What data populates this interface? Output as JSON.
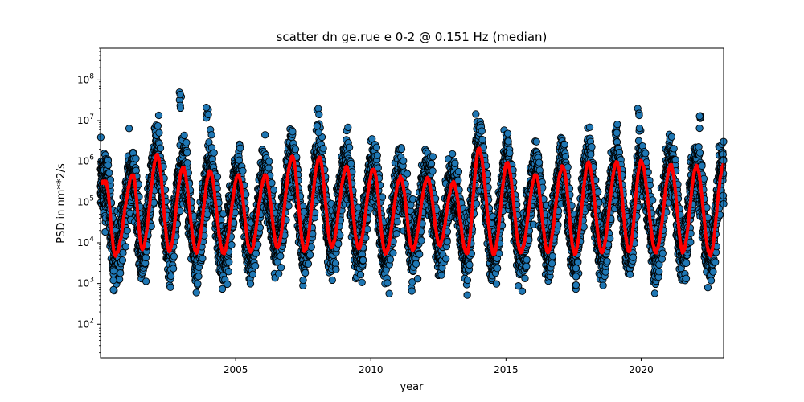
{
  "chart_data": {
    "type": "scatter",
    "title": "scatter dn ge.rue e 0-2 @ 0.151 Hz (median)",
    "xlabel": "year",
    "ylabel": "PSD in nm**2/s",
    "xlim": [
      2000.0,
      2023.05
    ],
    "ylim": [
      15,
      600000000
    ],
    "yscale": "log",
    "grid": false,
    "x_ticks": [
      2005,
      2010,
      2015,
      2020
    ],
    "x_tick_labels": [
      "2005",
      "2010",
      "2015",
      "2020"
    ],
    "y_ticks": [
      100,
      1000,
      10000,
      100000,
      1000000,
      10000000,
      100000000
    ],
    "y_tick_exponents": [
      "2",
      "3",
      "4",
      "5",
      "6",
      "7",
      "8"
    ],
    "y_tick_base": "10",
    "colors": {
      "scatter_fill": "#1f77b4",
      "scatter_edge": "#000000",
      "median_line": "#ff0000"
    },
    "series": [
      {
        "type": "scatter",
        "pattern": "annual oscillation of daily PSD values",
        "period_years": 1.0,
        "x_range": [
          2000.0,
          2023.05
        ],
        "peak_season_offset_years": 0.05,
        "trough_season_offset_years": 0.55,
        "typical_peak_range": [
          1000000,
          20000000
        ],
        "max_peaks": [
          {
            "x": 2002.95,
            "y": 50000000
          },
          {
            "x": 2003.95,
            "y": 40000000
          },
          {
            "x": 2008.05,
            "y": 20000000
          },
          {
            "x": 2019.9,
            "y": 20000000
          },
          {
            "x": 2022.2,
            "y": 25000000
          }
        ],
        "typical_trough_range": [
          800,
          3000
        ],
        "min_troughs": [
          {
            "x": 2000.5,
            "y": 700
          },
          {
            "x": 2017.6,
            "y": 750
          }
        ]
      },
      {
        "type": "line",
        "pattern": "median, annual oscillation",
        "median_peaks": [
          {
            "x": 2000.2,
            "y": 300000
          },
          {
            "x": 2001.2,
            "y": 450000
          },
          {
            "x": 2002.1,
            "y": 1400000
          },
          {
            "x": 2003.05,
            "y": 700000
          },
          {
            "x": 2004.05,
            "y": 550000
          },
          {
            "x": 2005.1,
            "y": 450000
          },
          {
            "x": 2006.1,
            "y": 450000
          },
          {
            "x": 2007.1,
            "y": 1300000
          },
          {
            "x": 2008.1,
            "y": 1200000
          },
          {
            "x": 2009.1,
            "y": 700000
          },
          {
            "x": 2010.1,
            "y": 650000
          },
          {
            "x": 2011.1,
            "y": 400000
          },
          {
            "x": 2012.1,
            "y": 380000
          },
          {
            "x": 2013.05,
            "y": 300000
          },
          {
            "x": 2014.0,
            "y": 2000000
          },
          {
            "x": 2015.05,
            "y": 900000
          },
          {
            "x": 2016.1,
            "y": 450000
          },
          {
            "x": 2017.1,
            "y": 750000
          },
          {
            "x": 2018.05,
            "y": 900000
          },
          {
            "x": 2019.1,
            "y": 950000
          },
          {
            "x": 2020.0,
            "y": 1000000
          },
          {
            "x": 2021.1,
            "y": 800000
          },
          {
            "x": 2022.05,
            "y": 750000
          },
          {
            "x": 2023.05,
            "y": 800000
          }
        ],
        "median_troughs": [
          {
            "x": 2000.55,
            "y": 5000
          },
          {
            "x": 2001.55,
            "y": 7000
          },
          {
            "x": 2002.55,
            "y": 6500
          },
          {
            "x": 2003.55,
            "y": 6000
          },
          {
            "x": 2004.55,
            "y": 5500
          },
          {
            "x": 2005.55,
            "y": 6000
          },
          {
            "x": 2006.55,
            "y": 8000
          },
          {
            "x": 2007.55,
            "y": 6500
          },
          {
            "x": 2008.55,
            "y": 8000
          },
          {
            "x": 2009.55,
            "y": 7500
          },
          {
            "x": 2010.55,
            "y": 5500
          },
          {
            "x": 2011.55,
            "y": 7000
          },
          {
            "x": 2012.55,
            "y": 9000
          },
          {
            "x": 2013.55,
            "y": 5500
          },
          {
            "x": 2014.55,
            "y": 5500
          },
          {
            "x": 2015.55,
            "y": 6000
          },
          {
            "x": 2016.55,
            "y": 6000
          },
          {
            "x": 2017.55,
            "y": 5500
          },
          {
            "x": 2018.55,
            "y": 6000
          },
          {
            "x": 2019.55,
            "y": 6500
          },
          {
            "x": 2020.55,
            "y": 6000
          },
          {
            "x": 2021.55,
            "y": 6000
          },
          {
            "x": 2022.55,
            "y": 5000
          }
        ]
      }
    ]
  }
}
